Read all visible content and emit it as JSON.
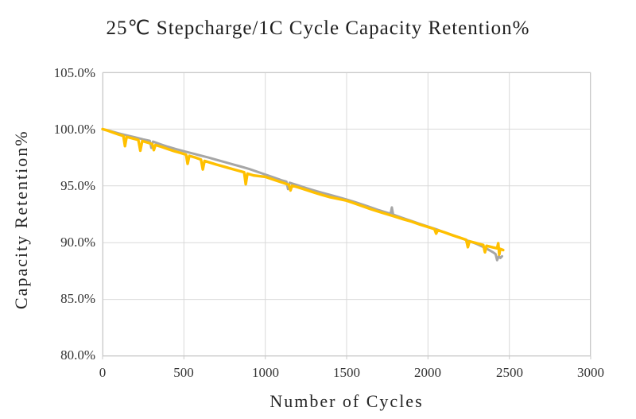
{
  "chart_data": {
    "type": "line",
    "title": "25℃ Stepcharge/1C Cycle Capacity Retention%",
    "xlabel": "Number of Cycles",
    "ylabel": "Capacity Retention%",
    "xlim": [
      0,
      3000
    ],
    "ylim": [
      80,
      105
    ],
    "grid": true,
    "legend": false,
    "grid_color": "#d9d9d9",
    "border_color": "#c9c9c9",
    "x_ticks": [
      0,
      500,
      1000,
      1500,
      2000,
      2500,
      3000
    ],
    "x_tick_labels": [
      "0",
      "500",
      "1000",
      "1500",
      "2000",
      "2500",
      "3000"
    ],
    "y_ticks": [
      105,
      100,
      95,
      90,
      85,
      80
    ],
    "y_tick_labels": [
      "105.0%",
      "100.0%",
      "95.0%",
      "90.0%",
      "85.0%",
      "80.0%"
    ],
    "series": [
      {
        "name": "gray",
        "color": "#a6a6a6",
        "stroke_width": 3,
        "points": [
          [
            0,
            100.0
          ],
          [
            50,
            99.82
          ],
          [
            100,
            99.62
          ],
          [
            150,
            99.45
          ],
          [
            200,
            99.28
          ],
          [
            250,
            99.1
          ],
          [
            290,
            98.97
          ],
          [
            300,
            98.35
          ],
          [
            310,
            98.9
          ],
          [
            350,
            98.7
          ],
          [
            400,
            98.45
          ],
          [
            450,
            98.25
          ],
          [
            500,
            98.05
          ],
          [
            550,
            97.87
          ],
          [
            600,
            97.68
          ],
          [
            650,
            97.5
          ],
          [
            700,
            97.3
          ],
          [
            750,
            97.1
          ],
          [
            800,
            96.9
          ],
          [
            850,
            96.7
          ],
          [
            900,
            96.5
          ],
          [
            950,
            96.25
          ],
          [
            1000,
            96.0
          ],
          [
            1050,
            95.75
          ],
          [
            1100,
            95.5
          ],
          [
            1130,
            95.38
          ],
          [
            1140,
            94.72
          ],
          [
            1150,
            95.28
          ],
          [
            1200,
            95.05
          ],
          [
            1250,
            94.82
          ],
          [
            1300,
            94.6
          ],
          [
            1350,
            94.4
          ],
          [
            1400,
            94.2
          ],
          [
            1450,
            94.0
          ],
          [
            1500,
            93.8
          ],
          [
            1550,
            93.58
          ],
          [
            1600,
            93.35
          ],
          [
            1650,
            93.1
          ],
          [
            1700,
            92.85
          ],
          [
            1740,
            92.68
          ],
          [
            1770,
            92.55
          ],
          [
            1778,
            93.1
          ],
          [
            1786,
            92.48
          ],
          [
            1800,
            92.4
          ],
          [
            1850,
            92.15
          ],
          [
            1900,
            91.9
          ],
          [
            1950,
            91.65
          ],
          [
            2000,
            91.42
          ],
          [
            2050,
            91.18
          ],
          [
            2100,
            90.92
          ],
          [
            2150,
            90.68
          ],
          [
            2200,
            90.42
          ],
          [
            2250,
            90.15
          ],
          [
            2300,
            89.88
          ],
          [
            2350,
            89.55
          ],
          [
            2400,
            89.15
          ],
          [
            2415,
            89.0
          ],
          [
            2425,
            88.45
          ],
          [
            2435,
            88.8
          ],
          [
            2445,
            88.65
          ],
          [
            2455,
            88.8
          ]
        ]
      },
      {
        "name": "yellow",
        "color": "#ffc000",
        "stroke_width": 3.4,
        "points": [
          [
            0,
            100.0
          ],
          [
            25,
            99.9
          ],
          [
            60,
            99.72
          ],
          [
            100,
            99.52
          ],
          [
            128,
            99.4
          ],
          [
            138,
            98.5
          ],
          [
            148,
            99.32
          ],
          [
            180,
            99.2
          ],
          [
            220,
            99.05
          ],
          [
            232,
            98.1
          ],
          [
            244,
            98.95
          ],
          [
            280,
            98.8
          ],
          [
            305,
            98.68
          ],
          [
            315,
            98.15
          ],
          [
            325,
            98.6
          ],
          [
            360,
            98.45
          ],
          [
            400,
            98.25
          ],
          [
            440,
            98.06
          ],
          [
            480,
            97.9
          ],
          [
            513,
            97.75
          ],
          [
            523,
            96.95
          ],
          [
            533,
            97.65
          ],
          [
            570,
            97.5
          ],
          [
            605,
            97.32
          ],
          [
            616,
            96.45
          ],
          [
            627,
            97.2
          ],
          [
            660,
            97.05
          ],
          [
            700,
            96.88
          ],
          [
            750,
            96.68
          ],
          [
            800,
            96.48
          ],
          [
            840,
            96.32
          ],
          [
            870,
            96.2
          ],
          [
            880,
            95.15
          ],
          [
            890,
            96.08
          ],
          [
            930,
            95.92
          ],
          [
            1000,
            95.8
          ],
          [
            1050,
            95.55
          ],
          [
            1100,
            95.32
          ],
          [
            1145,
            95.1
          ],
          [
            1155,
            94.6
          ],
          [
            1165,
            95.02
          ],
          [
            1200,
            94.88
          ],
          [
            1250,
            94.65
          ],
          [
            1300,
            94.42
          ],
          [
            1350,
            94.2
          ],
          [
            1400,
            94.0
          ],
          [
            1450,
            93.85
          ],
          [
            1500,
            93.7
          ],
          [
            1550,
            93.45
          ],
          [
            1600,
            93.2
          ],
          [
            1650,
            92.95
          ],
          [
            1700,
            92.72
          ],
          [
            1750,
            92.5
          ],
          [
            1800,
            92.28
          ],
          [
            1850,
            92.05
          ],
          [
            1900,
            91.85
          ],
          [
            1950,
            91.6
          ],
          [
            2000,
            91.38
          ],
          [
            2040,
            91.2
          ],
          [
            2050,
            90.8
          ],
          [
            2060,
            91.1
          ],
          [
            2100,
            90.92
          ],
          [
            2150,
            90.65
          ],
          [
            2200,
            90.42
          ],
          [
            2235,
            90.25
          ],
          [
            2245,
            89.6
          ],
          [
            2255,
            90.12
          ],
          [
            2300,
            89.95
          ],
          [
            2340,
            89.8
          ],
          [
            2350,
            89.15
          ],
          [
            2360,
            89.72
          ],
          [
            2400,
            89.58
          ],
          [
            2425,
            89.5
          ],
          [
            2432,
            89.95
          ],
          [
            2438,
            88.95
          ],
          [
            2444,
            89.45
          ],
          [
            2462,
            89.35
          ]
        ]
      }
    ]
  }
}
